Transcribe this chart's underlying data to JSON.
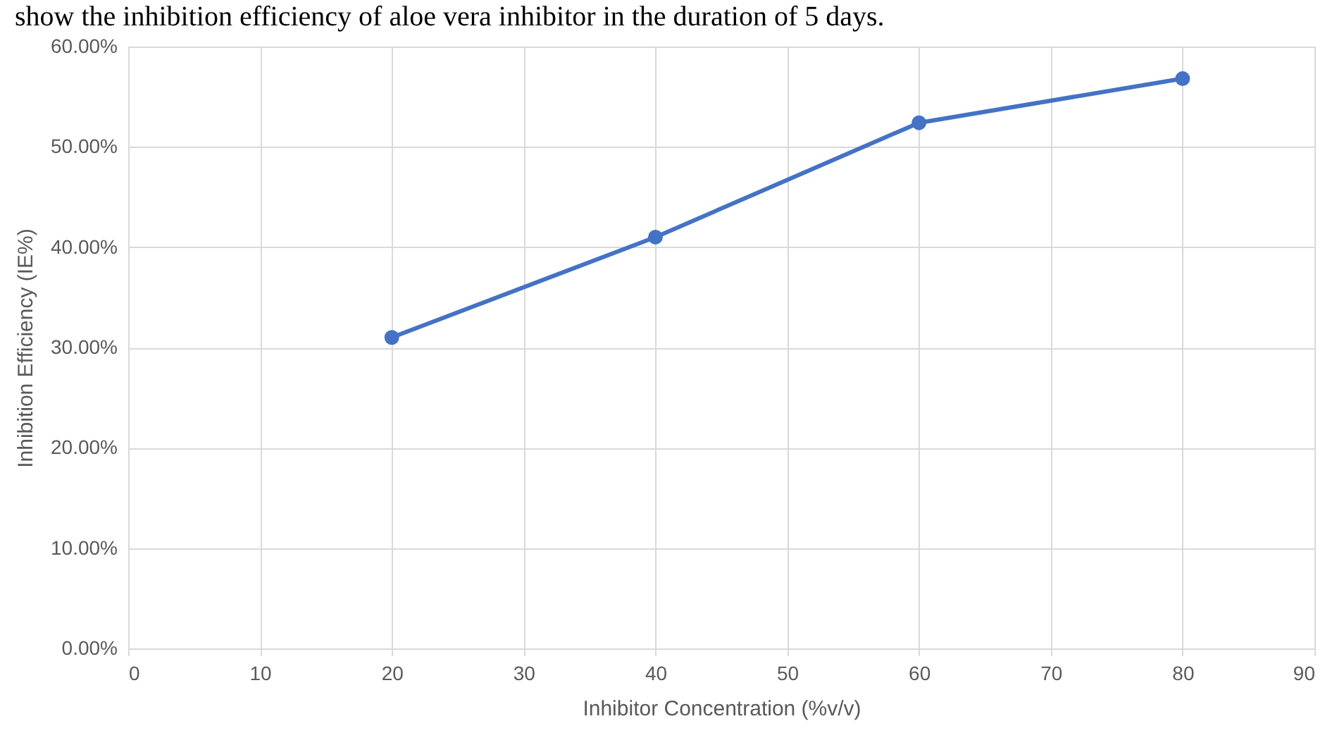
{
  "chart_data": {
    "type": "line",
    "title": "show the inhibition efficiency of aloe vera inhibitor in the duration of 5 days.",
    "xlabel": "Inhibitor Concentration (%v/v)",
    "ylabel": "Inhibition Efficiency (IE%)",
    "x": [
      20,
      40,
      60,
      80
    ],
    "series": [
      {
        "color": "#4472c4",
        "values": [
          31.0,
          41.0,
          52.4,
          56.8
        ]
      }
    ],
    "xlim": [
      0,
      90
    ],
    "xticks": [
      0,
      10,
      20,
      30,
      40,
      50,
      60,
      70,
      80,
      90
    ],
    "ylim": [
      0,
      60
    ],
    "yticks": [
      {
        "value": 0,
        "label": "0.00%"
      },
      {
        "value": 10,
        "label": "10.00%"
      },
      {
        "value": 20,
        "label": "20.00%"
      },
      {
        "value": 30,
        "label": "30.00%"
      },
      {
        "value": 40,
        "label": "40.00%"
      },
      {
        "value": 50,
        "label": "50.00%"
      },
      {
        "value": 60,
        "label": "60.00%"
      }
    ],
    "grid": true,
    "marker": "circle",
    "line_style": "solid",
    "legend": false
  }
}
